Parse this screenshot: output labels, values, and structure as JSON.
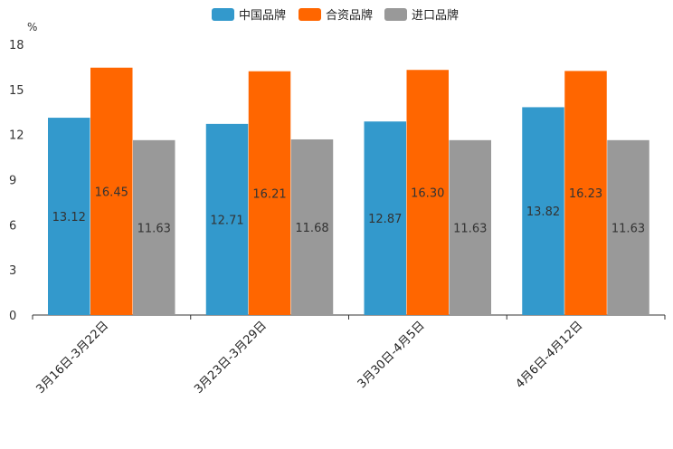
{
  "chart_data": {
    "type": "bar",
    "title": "",
    "xlabel": "",
    "ylabel": "%",
    "ylim": [
      0,
      18
    ],
    "yticks": [
      0,
      3,
      6,
      9,
      12,
      15,
      18
    ],
    "grid": false,
    "legend_position": "top-center",
    "categories": [
      "3月16日-3月22日",
      "3月23日-3月29日",
      "3月30日-4月5日",
      "4月6日-4月12日"
    ],
    "series": [
      {
        "name": "中国品牌",
        "color": "#3399cc",
        "values": [
          13.12,
          12.71,
          12.87,
          13.82
        ],
        "labels": [
          "13.12",
          "12.71",
          "12.87",
          "13.82"
        ]
      },
      {
        "name": "合资品牌",
        "color": "#ff6600",
        "values": [
          16.45,
          16.21,
          16.3,
          16.23
        ],
        "labels": [
          "16.45",
          "16.21",
          "16.30",
          "16.23"
        ]
      },
      {
        "name": "进口品牌",
        "color": "#999999",
        "values": [
          11.63,
          11.68,
          11.63,
          11.63
        ],
        "labels": [
          "11.63",
          "11.68",
          "11.63",
          "11.63"
        ]
      }
    ]
  }
}
